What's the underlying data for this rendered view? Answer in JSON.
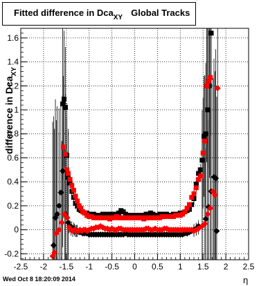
{
  "title": {
    "prefix": "Fitted difference in Dca",
    "subscript": "XY",
    "suffix": "Global Tracks"
  },
  "timestamp": "Wed Oct  8 18:20:09 2014",
  "chart_data": {
    "type": "scatter",
    "xlabel": "η",
    "ylabel": "difference in Dca",
    "ylabel_subscript": "XY",
    "xlim": [
      -2.5,
      2.5
    ],
    "ylim": [
      -0.25,
      1.68
    ],
    "grid": true,
    "x_ticks": [
      "-2.5",
      "-2",
      "-1.5",
      "-1",
      "-0.5",
      "0",
      "0.5",
      "1",
      "1.5",
      "2",
      "2.5"
    ],
    "y_ticks": [
      "-0.2",
      "0",
      "0.2",
      "0.4",
      "0.6",
      "0.8",
      "1",
      "1.2",
      "1.4",
      "1.6"
    ],
    "series": [
      {
        "marker": "square",
        "color": "#000000",
        "points": [
          [
            -1.58,
            1.05
          ],
          [
            -1.55,
            1.09
          ],
          [
            -1.52,
            1.02
          ],
          [
            -1.49,
            0.62
          ],
          [
            -1.46,
            0.44
          ],
          [
            -1.42,
            0.39
          ],
          [
            -1.38,
            0.32
          ],
          [
            -1.34,
            0.27
          ],
          [
            -1.3,
            0.22
          ],
          [
            -1.26,
            0.2
          ],
          [
            -1.22,
            0.17
          ],
          [
            -1.18,
            0.16
          ],
          [
            -1.14,
            0.15
          ],
          [
            -1.1,
            0.14
          ],
          [
            -1.05,
            0.14
          ],
          [
            -1.0,
            0.13
          ],
          [
            -0.95,
            0.13
          ],
          [
            -0.9,
            0.13
          ],
          [
            -0.85,
            0.12
          ],
          [
            -0.8,
            0.12
          ],
          [
            -0.75,
            0.12
          ],
          [
            -0.7,
            0.13
          ],
          [
            -0.65,
            0.13
          ],
          [
            -0.6,
            0.12
          ],
          [
            -0.55,
            0.13
          ],
          [
            -0.5,
            0.13
          ],
          [
            -0.45,
            0.12
          ],
          [
            -0.4,
            0.13
          ],
          [
            -0.35,
            0.14
          ],
          [
            -0.3,
            0.16
          ],
          [
            -0.25,
            0.15
          ],
          [
            -0.2,
            0.13
          ],
          [
            -0.15,
            0.12
          ],
          [
            -0.1,
            0.12
          ],
          [
            -0.05,
            0.12
          ],
          [
            0.0,
            0.12
          ],
          [
            0.05,
            0.12
          ],
          [
            0.1,
            0.12
          ],
          [
            0.15,
            0.12
          ],
          [
            0.2,
            0.12
          ],
          [
            0.25,
            0.13
          ],
          [
            0.3,
            0.13
          ],
          [
            0.35,
            0.14
          ],
          [
            0.4,
            0.13
          ],
          [
            0.45,
            0.12
          ],
          [
            0.5,
            0.12
          ],
          [
            0.55,
            0.13
          ],
          [
            0.6,
            0.13
          ],
          [
            0.65,
            0.13
          ],
          [
            0.7,
            0.13
          ],
          [
            0.75,
            0.12
          ],
          [
            0.8,
            0.12
          ],
          [
            0.85,
            0.13
          ],
          [
            0.9,
            0.13
          ],
          [
            0.95,
            0.13
          ],
          [
            1.0,
            0.14
          ],
          [
            1.05,
            0.14
          ],
          [
            1.1,
            0.15
          ],
          [
            1.15,
            0.16
          ],
          [
            1.2,
            0.17
          ],
          [
            1.25,
            0.21
          ],
          [
            1.3,
            0.26
          ],
          [
            1.35,
            0.38
          ],
          [
            1.4,
            0.47
          ],
          [
            1.44,
            0.5
          ],
          [
            1.48,
            0.58
          ],
          [
            1.52,
            0.78
          ],
          [
            1.56,
            0.8
          ],
          [
            1.6,
            1.0
          ],
          [
            1.64,
            1.2
          ],
          [
            1.68,
            1.64
          ]
        ]
      },
      {
        "marker": "square",
        "color": "#ff0000",
        "points": [
          [
            -1.56,
            0.69
          ],
          [
            -1.52,
            0.63
          ],
          [
            -1.49,
            0.5
          ],
          [
            -1.46,
            0.47
          ],
          [
            -1.42,
            0.42
          ],
          [
            -1.38,
            0.37
          ],
          [
            -1.34,
            0.33
          ],
          [
            -1.3,
            0.28
          ],
          [
            -1.26,
            0.24
          ],
          [
            -1.22,
            0.2
          ],
          [
            -1.18,
            0.18
          ],
          [
            -1.14,
            0.15
          ],
          [
            -1.1,
            0.14
          ],
          [
            -1.05,
            0.12
          ],
          [
            -1.0,
            0.11
          ],
          [
            -0.95,
            0.11
          ],
          [
            -0.9,
            0.1
          ],
          [
            -0.85,
            0.1
          ],
          [
            -0.8,
            0.1
          ],
          [
            -0.75,
            0.1
          ],
          [
            -0.7,
            0.1
          ],
          [
            -0.65,
            0.1
          ],
          [
            -0.6,
            0.1
          ],
          [
            -0.55,
            0.09
          ],
          [
            -0.5,
            0.1
          ],
          [
            -0.45,
            0.1
          ],
          [
            -0.4,
            0.11
          ],
          [
            -0.35,
            0.1
          ],
          [
            -0.3,
            0.1
          ],
          [
            -0.25,
            0.1
          ],
          [
            -0.2,
            0.1
          ],
          [
            -0.15,
            0.1
          ],
          [
            -0.1,
            0.1
          ],
          [
            -0.05,
            0.1
          ],
          [
            0.0,
            0.1
          ],
          [
            0.05,
            0.1
          ],
          [
            0.1,
            0.1
          ],
          [
            0.15,
            0.1
          ],
          [
            0.2,
            0.09
          ],
          [
            0.25,
            0.1
          ],
          [
            0.3,
            0.1
          ],
          [
            0.35,
            0.1
          ],
          [
            0.4,
            0.1
          ],
          [
            0.45,
            0.1
          ],
          [
            0.5,
            0.1
          ],
          [
            0.55,
            0.1
          ],
          [
            0.6,
            0.11
          ],
          [
            0.65,
            0.11
          ],
          [
            0.7,
            0.11
          ],
          [
            0.75,
            0.11
          ],
          [
            0.8,
            0.11
          ],
          [
            0.85,
            0.11
          ],
          [
            0.9,
            0.12
          ],
          [
            0.95,
            0.12
          ],
          [
            1.0,
            0.12
          ],
          [
            1.05,
            0.13
          ],
          [
            1.1,
            0.15
          ],
          [
            1.15,
            0.18
          ],
          [
            1.2,
            0.21
          ],
          [
            1.25,
            0.27
          ],
          [
            1.3,
            0.3
          ],
          [
            1.35,
            0.35
          ],
          [
            1.4,
            0.42
          ],
          [
            1.45,
            0.45
          ],
          [
            1.5,
            0.64
          ],
          [
            1.54,
            0.74
          ],
          [
            1.58,
            1.2
          ],
          [
            1.62,
            1.24
          ],
          [
            1.66,
            1.27
          ]
        ]
      },
      {
        "marker": "diamond",
        "color": "#000000",
        "points": [
          [
            -1.78,
            -0.13
          ],
          [
            -1.74,
            0.1
          ],
          [
            -1.7,
            0.13
          ],
          [
            -1.66,
            0.2
          ],
          [
            -1.62,
            0.31
          ],
          [
            -1.58,
            0.49
          ],
          [
            -1.52,
            0.13
          ],
          [
            -1.46,
            0.06
          ],
          [
            -1.42,
            0.03
          ],
          [
            -1.38,
            0.02
          ],
          [
            -1.34,
            0.01
          ],
          [
            -1.3,
            -0.01
          ],
          [
            -1.26,
            -0.01
          ],
          [
            -1.22,
            -0.02
          ],
          [
            -1.18,
            -0.02
          ],
          [
            -1.14,
            -0.03
          ],
          [
            -1.1,
            -0.03
          ],
          [
            -1.05,
            -0.03
          ],
          [
            -1.0,
            -0.04
          ],
          [
            -0.95,
            -0.04
          ],
          [
            -0.9,
            -0.04
          ],
          [
            -0.85,
            -0.04
          ],
          [
            -0.8,
            -0.04
          ],
          [
            -0.75,
            -0.04
          ],
          [
            -0.7,
            -0.04
          ],
          [
            -0.65,
            -0.04
          ],
          [
            -0.6,
            -0.04
          ],
          [
            -0.55,
            -0.04
          ],
          [
            -0.5,
            -0.04
          ],
          [
            -0.45,
            -0.04
          ],
          [
            -0.4,
            -0.04
          ],
          [
            -0.35,
            -0.04
          ],
          [
            -0.3,
            -0.04
          ],
          [
            -0.25,
            -0.04
          ],
          [
            -0.2,
            -0.03
          ],
          [
            -0.15,
            -0.04
          ],
          [
            -0.1,
            -0.04
          ],
          [
            -0.05,
            -0.04
          ],
          [
            0.0,
            -0.04
          ],
          [
            0.05,
            -0.04
          ],
          [
            0.1,
            -0.04
          ],
          [
            0.15,
            -0.04
          ],
          [
            0.2,
            -0.04
          ],
          [
            0.25,
            -0.04
          ],
          [
            0.3,
            -0.04
          ],
          [
            0.35,
            -0.04
          ],
          [
            0.4,
            -0.04
          ],
          [
            0.45,
            -0.04
          ],
          [
            0.5,
            -0.04
          ],
          [
            0.55,
            -0.04
          ],
          [
            0.6,
            -0.04
          ],
          [
            0.65,
            -0.04
          ],
          [
            0.7,
            -0.04
          ],
          [
            0.75,
            -0.04
          ],
          [
            0.8,
            -0.04
          ],
          [
            0.85,
            -0.04
          ],
          [
            0.9,
            -0.04
          ],
          [
            0.95,
            -0.04
          ],
          [
            1.0,
            -0.04
          ],
          [
            1.05,
            -0.04
          ],
          [
            1.1,
            -0.03
          ],
          [
            1.15,
            -0.03
          ],
          [
            1.2,
            -0.02
          ],
          [
            1.25,
            -0.01
          ],
          [
            1.3,
            0.0
          ],
          [
            1.35,
            0.01
          ],
          [
            1.4,
            0.03
          ],
          [
            1.48,
            0.03
          ],
          [
            1.56,
            0.09
          ],
          [
            1.62,
            0.19
          ],
          [
            1.68,
            0.32
          ],
          [
            1.74,
            0.44
          ],
          [
            1.78,
            0.43
          ],
          [
            1.8,
            -0.01
          ]
        ]
      },
      {
        "marker": "diamond",
        "color": "#ff0000",
        "points": [
          [
            -1.8,
            -0.22
          ],
          [
            -1.76,
            -0.19
          ],
          [
            -1.72,
            -0.03
          ],
          [
            -1.66,
            0.0
          ],
          [
            -1.6,
            0.06
          ],
          [
            -1.54,
            0.13
          ],
          [
            -1.48,
            0.1
          ],
          [
            -1.44,
            0.02
          ],
          [
            -1.4,
            0.0
          ],
          [
            -1.36,
            -0.01
          ],
          [
            -1.32,
            0.0
          ],
          [
            -1.28,
            -0.01
          ],
          [
            -1.24,
            -0.01
          ],
          [
            -1.2,
            0.0
          ],
          [
            -1.16,
            -0.01
          ],
          [
            -1.12,
            0.0
          ],
          [
            -1.08,
            0.0
          ],
          [
            -1.04,
            -0.01
          ],
          [
            -1.0,
            0.0
          ],
          [
            -0.95,
            0.01
          ],
          [
            -0.9,
            0.01
          ],
          [
            -0.85,
            0.02
          ],
          [
            -0.8,
            0.02
          ],
          [
            -0.75,
            0.03
          ],
          [
            -0.7,
            0.02
          ],
          [
            -0.65,
            0.01
          ],
          [
            -0.6,
            0.01
          ],
          [
            -0.55,
            0.0
          ],
          [
            -0.5,
            0.01
          ],
          [
            -0.45,
            0.0
          ],
          [
            -0.4,
            0.0
          ],
          [
            -0.35,
            0.01
          ],
          [
            -0.3,
            0.01
          ],
          [
            -0.25,
            0.0
          ],
          [
            -0.2,
            0.0
          ],
          [
            -0.15,
            0.0
          ],
          [
            -0.1,
            0.0
          ],
          [
            -0.05,
            0.0
          ],
          [
            0.0,
            0.0
          ],
          [
            0.05,
            0.0
          ],
          [
            0.1,
            0.0
          ],
          [
            0.15,
            0.0
          ],
          [
            0.2,
            0.0
          ],
          [
            0.25,
            0.01
          ],
          [
            0.3,
            0.01
          ],
          [
            0.35,
            0.0
          ],
          [
            0.4,
            0.0
          ],
          [
            0.45,
            0.01
          ],
          [
            0.5,
            0.0
          ],
          [
            0.55,
            0.0
          ],
          [
            0.6,
            0.0
          ],
          [
            0.65,
            0.01
          ],
          [
            0.7,
            0.01
          ],
          [
            0.75,
            0.0
          ],
          [
            0.8,
            0.0
          ],
          [
            0.85,
            0.0
          ],
          [
            0.9,
            0.0
          ],
          [
            0.95,
            0.0
          ],
          [
            1.0,
            0.0
          ],
          [
            1.05,
            0.0
          ],
          [
            1.1,
            0.0
          ],
          [
            1.15,
            0.0
          ],
          [
            1.2,
            0.0
          ],
          [
            1.25,
            0.0
          ],
          [
            1.3,
            -0.01
          ],
          [
            1.35,
            0.0
          ],
          [
            1.4,
            0.01
          ],
          [
            1.48,
            0.03
          ],
          [
            1.54,
            0.05
          ],
          [
            1.6,
            0.13
          ],
          [
            1.66,
            0.18
          ],
          [
            1.72,
            0.32
          ],
          [
            1.76,
            0.29
          ],
          [
            1.82,
            1.18
          ]
        ]
      }
    ]
  }
}
